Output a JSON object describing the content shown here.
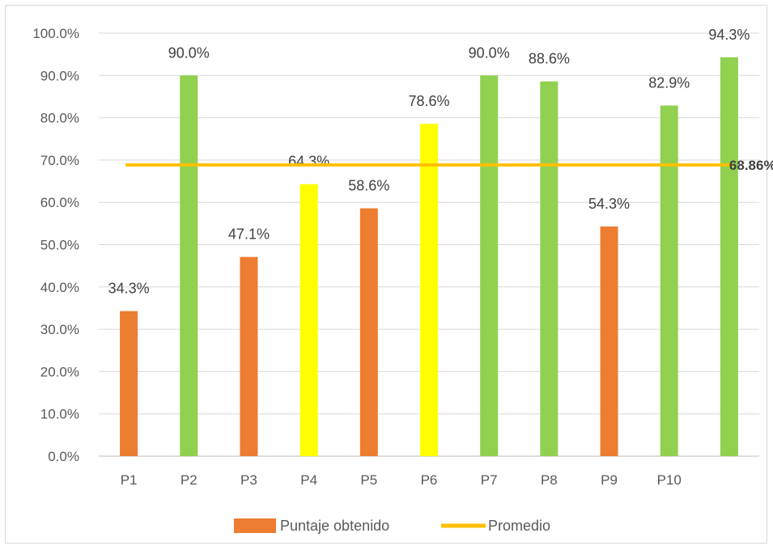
{
  "chart_data": {
    "type": "bar",
    "categories": [
      "P1",
      "P2",
      "P3",
      "P4",
      "P5",
      "P6",
      "P7",
      "P8",
      "P9",
      "P10",
      ""
    ],
    "series": [
      {
        "name": "Puntaje obtenido",
        "values": [
          34.3,
          90.0,
          47.1,
          64.3,
          58.6,
          78.6,
          90.0,
          88.6,
          54.3,
          82.9,
          94.3
        ],
        "value_labels": [
          "34.3%",
          "90.0%",
          "47.1%",
          "64.3%",
          "58.6%",
          "78.6%",
          "90.0%",
          "88.6%",
          "54.3%",
          "82.9%",
          "94.3%"
        ],
        "bar_colors": [
          "#ED7D31",
          "#92D050",
          "#ED7D31",
          "#FFFF00",
          "#ED7D31",
          "#FFFF00",
          "#92D050",
          "#92D050",
          "#ED7D31",
          "#92D050",
          "#92D050"
        ]
      },
      {
        "name": "Promedio",
        "type": "line",
        "value": 68.86,
        "value_label": "68.86%",
        "color": "#FFC000"
      }
    ],
    "ylim": [
      0,
      100
    ],
    "yticks": [
      0,
      10,
      20,
      30,
      40,
      50,
      60,
      70,
      80,
      90,
      100
    ],
    "ytick_labels": [
      "0.0%",
      "10.0%",
      "20.0%",
      "30.0%",
      "40.0%",
      "50.0%",
      "60.0%",
      "70.0%",
      "80.0%",
      "90.0%",
      "100.0%"
    ],
    "grid": true,
    "legend_position": "bottom",
    "gridline_color": "#d9d9d9",
    "axis_color": "#bfbfbf"
  }
}
